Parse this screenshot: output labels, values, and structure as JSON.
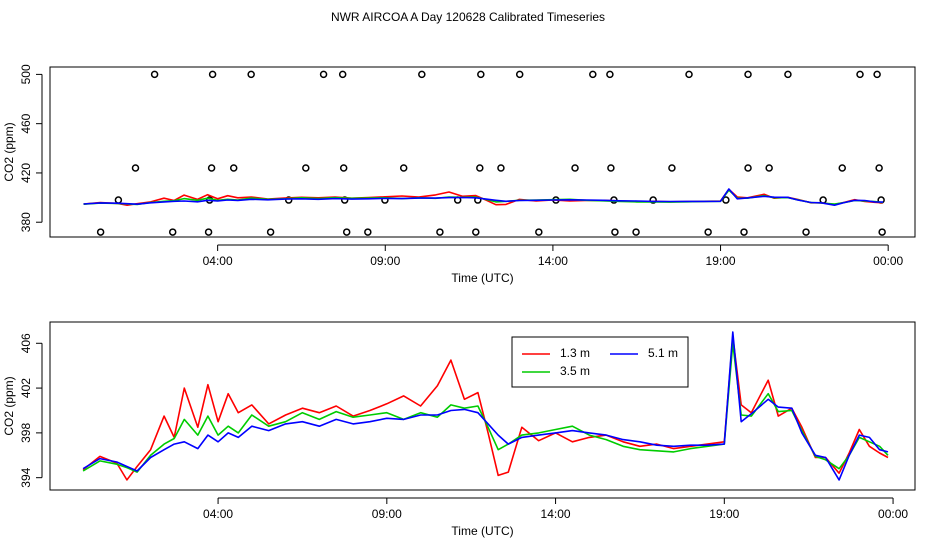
{
  "title": "NWR AIRCOA A  Day 120628  Calibrated Timeseries",
  "chart_data": [
    {
      "type": "line",
      "xlabel": "Time (UTC)",
      "ylabel": "CO2 (ppm)",
      "xlim": [
        -1.0,
        24.8
      ],
      "ylim": [
        368,
        506
      ],
      "xticks": [
        {
          "value": 4,
          "label": "04:00"
        },
        {
          "value": 9,
          "label": "09:00"
        },
        {
          "value": 14,
          "label": "14:00"
        },
        {
          "value": 19,
          "label": "19:00"
        },
        {
          "value": 24,
          "label": "00:00"
        }
      ],
      "yticks": [
        380,
        420,
        460,
        500
      ],
      "x": [
        0,
        0.5,
        1,
        1.3,
        1.6,
        2,
        2.4,
        2.7,
        3,
        3.4,
        3.7,
        4,
        4.3,
        4.6,
        5,
        5.5,
        6,
        6.5,
        7,
        7.5,
        8,
        8.5,
        9,
        9.5,
        10,
        10.5,
        10.9,
        11.3,
        11.7,
        12,
        12.3,
        12.6,
        13,
        13.5,
        14,
        14.5,
        15,
        15.5,
        16,
        16.5,
        17,
        17.5,
        18,
        18.5,
        19,
        19.25,
        19.5,
        19.8,
        20.3,
        20.6,
        21,
        21.3,
        21.7,
        22,
        22.4,
        22.7,
        23,
        23.3,
        23.6,
        23.85
      ],
      "series": [
        {
          "color": "#ff0000",
          "values": [
            394.7,
            395.9,
            395.3,
            393.8,
            395.0,
            396.5,
            399.5,
            397.6,
            402.0,
            398.5,
            402.3,
            399.0,
            401.5,
            399.8,
            400.5,
            398.8,
            399.6,
            400.2,
            399.8,
            400.4,
            399.5,
            400.0,
            400.6,
            401.3,
            400.4,
            402.2,
            404.5,
            401.0,
            401.6,
            398.0,
            394.2,
            394.5,
            398.5,
            397.3,
            398.0,
            397.2,
            397.6,
            397.8,
            397.2,
            396.8,
            397.0,
            396.6,
            396.8,
            397.0,
            397.2,
            406.6,
            400.5,
            399.8,
            402.7,
            399.5,
            400.2,
            398.5,
            395.8,
            395.8,
            394.4,
            396.2,
            398.3,
            396.8,
            396.2,
            395.8
          ]
        },
        {
          "color": "#00cc00",
          "values": [
            394.6,
            395.5,
            395.2,
            394.9,
            394.5,
            396.0,
            397.0,
            397.5,
            399.2,
            397.8,
            399.5,
            397.8,
            398.6,
            398.0,
            399.6,
            398.6,
            399.0,
            399.8,
            399.2,
            399.9,
            399.4,
            399.6,
            399.8,
            399.2,
            399.8,
            399.4,
            400.5,
            400.2,
            400.4,
            398.5,
            396.5,
            397.0,
            397.8,
            398.0,
            398.3,
            398.6,
            397.8,
            397.4,
            396.8,
            396.5,
            396.4,
            396.3,
            396.6,
            396.8,
            397.0,
            406.0,
            399.6,
            399.5,
            401.5,
            399.9,
            400.0,
            398.2,
            395.9,
            395.6,
            394.8,
            396.0,
            397.6,
            397.2,
            396.8,
            396.0
          ]
        },
        {
          "color": "#0000ff",
          "values": [
            394.8,
            395.7,
            395.4,
            395.0,
            394.6,
            395.8,
            396.5,
            397.0,
            397.2,
            396.6,
            397.8,
            397.2,
            398.0,
            397.6,
            398.6,
            398.2,
            398.8,
            399.0,
            398.6,
            399.2,
            398.8,
            399.0,
            399.3,
            399.2,
            399.6,
            399.6,
            400.0,
            400.1,
            399.8,
            398.8,
            397.8,
            397.0,
            397.6,
            397.8,
            398.0,
            398.2,
            398.0,
            397.8,
            397.4,
            397.2,
            396.9,
            396.8,
            396.9,
            396.9,
            397.0,
            407.0,
            399.0,
            399.7,
            401.0,
            400.3,
            400.2,
            398.0,
            396.0,
            395.8,
            393.8,
            396.0,
            397.8,
            397.6,
            396.5,
            396.3
          ]
        }
      ],
      "points": {
        "color": "#000000",
        "x": [
          2.12,
          3.85,
          5.0,
          7.16,
          7.73,
          10.09,
          11.85,
          13.01,
          15.19,
          15.7,
          18.06,
          19.82,
          21.01,
          23.16,
          23.67,
          1.55,
          3.82,
          4.48,
          6.63,
          7.76,
          9.55,
          11.82,
          12.45,
          14.66,
          15.73,
          17.55,
          19.82,
          20.45,
          22.63,
          23.73,
          1.04,
          3.76,
          6.12,
          7.79,
          8.99,
          11.16,
          11.76,
          14.09,
          15.82,
          16.99,
          19.16,
          22.06,
          23.79,
          0.51,
          2.66,
          3.73,
          5.58,
          7.85,
          8.48,
          10.63,
          11.7,
          13.58,
          15.85,
          16.48,
          18.63,
          19.7,
          21.55,
          23.82
        ],
        "y": [
          500,
          500,
          500,
          500,
          500,
          500,
          500,
          500,
          500,
          500,
          500,
          500,
          500,
          500,
          500,
          424,
          424,
          424,
          424,
          424,
          424,
          424,
          424,
          424,
          424,
          424,
          424,
          424,
          424,
          424,
          398,
          398,
          398,
          398,
          398,
          398,
          398,
          398,
          398,
          398,
          398,
          398,
          398,
          372,
          372,
          372,
          372,
          372,
          372,
          372,
          372,
          372,
          372,
          372,
          372,
          372,
          372,
          372
        ]
      }
    },
    {
      "type": "line",
      "xlabel": "Time (UTC)",
      "ylabel": "CO2 (ppm)",
      "legend": "top",
      "xlim": [
        -0.98,
        24.65
      ],
      "ylim": [
        392.9,
        407.9
      ],
      "xticks": [
        {
          "value": 4,
          "label": "04:00"
        },
        {
          "value": 9,
          "label": "09:00"
        },
        {
          "value": 14,
          "label": "14:00"
        },
        {
          "value": 19,
          "label": "19:00"
        },
        {
          "value": 24,
          "label": "00:00"
        }
      ],
      "yticks": [
        394,
        398,
        402,
        406
      ],
      "x": [
        0,
        0.5,
        1,
        1.3,
        1.6,
        2,
        2.4,
        2.7,
        3,
        3.4,
        3.7,
        4,
        4.3,
        4.6,
        5,
        5.5,
        6,
        6.5,
        7,
        7.5,
        8,
        8.5,
        9,
        9.5,
        10,
        10.5,
        10.9,
        11.3,
        11.7,
        12,
        12.3,
        12.6,
        13,
        13.5,
        14,
        14.5,
        15,
        15.5,
        16,
        16.5,
        17,
        17.5,
        18,
        18.5,
        19,
        19.25,
        19.5,
        19.8,
        20.3,
        20.6,
        21,
        21.3,
        21.7,
        22,
        22.4,
        22.7,
        23,
        23.3,
        23.6,
        23.85
      ],
      "series": [
        {
          "name": "1.3 m",
          "color": "#ff0000",
          "values": [
            394.7,
            395.9,
            395.3,
            393.8,
            395.0,
            396.5,
            399.5,
            397.6,
            402.0,
            398.5,
            402.3,
            399.0,
            401.5,
            399.8,
            400.5,
            398.8,
            399.6,
            400.2,
            399.8,
            400.4,
            399.5,
            400.0,
            400.6,
            401.3,
            400.4,
            402.2,
            404.5,
            401.0,
            401.6,
            398.0,
            394.2,
            394.5,
            398.5,
            397.3,
            398.0,
            397.2,
            397.6,
            397.8,
            397.2,
            396.8,
            397.0,
            396.6,
            396.8,
            397.0,
            397.2,
            406.6,
            400.5,
            399.8,
            402.7,
            399.5,
            400.2,
            398.5,
            395.8,
            395.8,
            394.4,
            396.2,
            398.3,
            396.8,
            396.2,
            395.8
          ]
        },
        {
          "name": "3.5 m",
          "color": "#00cc00",
          "values": [
            394.6,
            395.5,
            395.2,
            394.9,
            394.5,
            396.0,
            397.0,
            397.5,
            399.2,
            397.8,
            399.5,
            397.8,
            398.6,
            398.0,
            399.6,
            398.6,
            399.0,
            399.8,
            399.2,
            399.9,
            399.4,
            399.6,
            399.8,
            399.2,
            399.8,
            399.4,
            400.5,
            400.2,
            400.4,
            398.5,
            396.5,
            397.0,
            397.8,
            398.0,
            398.3,
            398.6,
            397.8,
            397.4,
            396.8,
            396.5,
            396.4,
            396.3,
            396.6,
            396.8,
            397.0,
            406.0,
            399.6,
            399.5,
            401.5,
            399.9,
            400.0,
            398.2,
            395.9,
            395.6,
            394.8,
            396.0,
            397.6,
            397.2,
            396.8,
            396.0
          ]
        },
        {
          "name": "5.1 m",
          "color": "#0000ff",
          "values": [
            394.8,
            395.7,
            395.4,
            395.0,
            394.6,
            395.8,
            396.5,
            397.0,
            397.2,
            396.6,
            397.8,
            397.2,
            398.0,
            397.6,
            398.6,
            398.2,
            398.8,
            399.0,
            398.6,
            399.2,
            398.8,
            399.0,
            399.3,
            399.2,
            399.6,
            399.6,
            400.0,
            400.1,
            399.8,
            398.8,
            397.8,
            397.0,
            397.6,
            397.8,
            398.0,
            398.2,
            398.0,
            397.8,
            397.4,
            397.2,
            396.9,
            396.8,
            396.9,
            396.9,
            397.0,
            407.0,
            399.0,
            399.7,
            401.0,
            400.3,
            400.2,
            398.0,
            396.0,
            395.8,
            393.8,
            396.0,
            397.8,
            397.6,
            396.5,
            396.3
          ]
        }
      ]
    }
  ]
}
